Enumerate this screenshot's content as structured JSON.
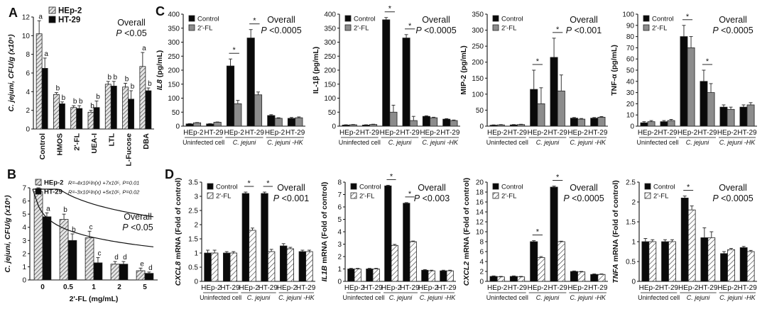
{
  "panel_letters": [
    "A",
    "B",
    "C",
    "D"
  ],
  "colors": {
    "black": "#0a0a0a",
    "gray": "#8c8c8c",
    "white": "#ffffff",
    "stroke": "#222222"
  },
  "chart_data": [
    {
      "id": "A",
      "type": "bar",
      "ylabel": "C. jejuni, CFU/g (x10⁵)",
      "ylim": [
        0,
        12
      ],
      "yticks": [
        0,
        2,
        4,
        6,
        8,
        10,
        12
      ],
      "categories": [
        "Control",
        "HMOS",
        "2'-FL",
        "UEA-I",
        "LTL",
        "L-Fucose",
        "DBA"
      ],
      "legend": [
        "HEp-2",
        "HT-29"
      ],
      "legend_position": "top-center",
      "overall": "Overall",
      "pvalue": "P <0.05",
      "series": [
        {
          "name": "HEp-2",
          "fill": "hatch",
          "values": [
            10.2,
            3.7,
            2.3,
            1.8,
            4.8,
            4.5,
            6.7
          ],
          "errors": [
            1.4,
            0.2,
            0.2,
            0.2,
            0.3,
            0.4,
            1.5
          ]
        },
        {
          "name": "HT-29",
          "fill": "black",
          "values": [
            6.5,
            2.7,
            2.2,
            2.3,
            4.6,
            3.2,
            4.1
          ],
          "errors": [
            1.1,
            0.2,
            0.3,
            0.7,
            0.5,
            0.9,
            0.3
          ]
        }
      ],
      "letters": [
        [
          "a",
          "a"
        ],
        [
          "b",
          "b"
        ],
        [
          "b",
          "b"
        ],
        [
          "b",
          "b"
        ],
        [
          "b",
          "b"
        ],
        [
          "b",
          "b"
        ],
        [
          "a",
          "b"
        ]
      ]
    },
    {
      "id": "B",
      "type": "bar",
      "ylabel": "C. jejuni, CFU/g (x10⁵)",
      "xlabel": "2'-FL (mg/mL)",
      "ylim": [
        0,
        7
      ],
      "yticks": [
        0,
        1,
        2,
        3,
        4,
        5,
        6,
        7
      ],
      "categories": [
        "0",
        "0.5",
        "1",
        "2",
        "5"
      ],
      "legend": [
        "HEp-2",
        "HT-29"
      ],
      "legend_position": "top-right",
      "equations": [
        "R=-4x10⁵ln(x) +7x10⁵, P=0.01",
        "R=-3x10⁵ln(x) +5x10⁵, P=0.02"
      ],
      "overall": "Overall",
      "pvalue": "P <0.05",
      "series": [
        {
          "name": "HEp-2",
          "fill": "hatch",
          "values": [
            6.7,
            4.6,
            3.2,
            1.2,
            0.7
          ],
          "errors": [
            0.3,
            0.4,
            0.5,
            0.2,
            0.2
          ]
        },
        {
          "name": "HT-29",
          "fill": "black",
          "values": [
            4.8,
            3.0,
            1.3,
            1.2,
            0.5
          ],
          "errors": [
            0.3,
            0.5,
            0.4,
            0.2,
            0.1
          ]
        }
      ],
      "letters": [
        [
          "a",
          "a"
        ],
        [
          "b",
          "b"
        ],
        [
          "c",
          "c"
        ],
        [
          "d",
          "d"
        ],
        [
          "e",
          "d"
        ]
      ]
    },
    {
      "id": "C1",
      "type": "bar",
      "ylabel": "IL8 (pg/mL)",
      "ylabel_italic_part": "IL8",
      "ylim": [
        0,
        400
      ],
      "yticks": [
        0,
        50,
        100,
        150,
        200,
        250,
        300,
        350,
        400
      ],
      "categories": [
        "HEp-2",
        "HT-29",
        "HEp-2",
        "HT-29",
        "HEp-2",
        "HT-29"
      ],
      "groups": [
        "Uninfected cell",
        "C. jejuni",
        "C. jejuni -HK"
      ],
      "legend": [
        "Control",
        "2'-FL"
      ],
      "overall": "Overall",
      "pvalue": "P <0.0005",
      "series": [
        {
          "name": "Control",
          "fill": "black",
          "values": [
            8,
            8,
            215,
            315,
            38,
            28
          ],
          "errors": [
            1,
            1,
            25,
            30,
            3,
            3
          ]
        },
        {
          "name": "2'-FL",
          "fill": "gray",
          "values": [
            12,
            14,
            80,
            112,
            28,
            30
          ],
          "errors": [
            1,
            1,
            12,
            10,
            2,
            3
          ]
        }
      ],
      "sig": [
        2,
        3
      ]
    },
    {
      "id": "C2",
      "type": "bar",
      "ylabel": "IL-1β (pg/mL)",
      "ylim": [
        0,
        400
      ],
      "yticks": [
        0,
        50,
        100,
        150,
        200,
        250,
        300,
        350,
        400
      ],
      "categories": [
        "HEp-2",
        "HT-29",
        "HEp-2",
        "HT-29",
        "HEp-2",
        "HT-29"
      ],
      "groups": [
        "Uninfected cell",
        "C. jejuni",
        "C. jejuni -HK"
      ],
      "legend": [
        "Control",
        "2'-FL"
      ],
      "overall": "Overall",
      "pvalue": "P <0.0005",
      "series": [
        {
          "name": "Control",
          "fill": "black",
          "values": [
            4,
            4,
            380,
            315,
            35,
            25
          ],
          "errors": [
            1,
            1,
            8,
            12,
            2,
            2
          ]
        },
        {
          "name": "2'-FL",
          "fill": "gray",
          "values": [
            5,
            6,
            50,
            20,
            30,
            20
          ],
          "errors": [
            1,
            1,
            25,
            15,
            2,
            2
          ]
        }
      ],
      "sig": [
        2,
        3
      ]
    },
    {
      "id": "C3",
      "type": "bar",
      "ylabel": "MIP-2 (pg/mL)",
      "ylim": [
        0,
        350
      ],
      "yticks": [
        0,
        50,
        100,
        150,
        200,
        250,
        300,
        350
      ],
      "categories": [
        "HEp-2",
        "HT-29",
        "HEp-2",
        "HT-29",
        "HEp-2",
        "HT-29"
      ],
      "groups": [
        "Uninfected cell",
        "C. jejuni",
        "C. jejuni -HK"
      ],
      "legend": [
        "Control",
        "2'-FL"
      ],
      "overall": "Overall",
      "pvalue": "P <0.001",
      "series": [
        {
          "name": "Control",
          "fill": "black",
          "values": [
            3,
            4,
            115,
            215,
            25,
            25
          ],
          "errors": [
            1,
            1,
            60,
            60,
            2,
            2
          ]
        },
        {
          "name": "2'-FL",
          "fill": "gray",
          "values": [
            4,
            5,
            70,
            110,
            22,
            28
          ],
          "errors": [
            1,
            1,
            50,
            50,
            2,
            2
          ]
        }
      ],
      "sig": [
        2,
        3
      ]
    },
    {
      "id": "C4",
      "type": "bar",
      "ylabel": "TNF-α (pg/mL)",
      "ylim": [
        0,
        100
      ],
      "yticks": [
        0,
        10,
        20,
        30,
        40,
        50,
        60,
        70,
        80,
        90,
        100
      ],
      "categories": [
        "HEp-2",
        "HT-29",
        "HEp-2",
        "HT-29",
        "HEp-2",
        "HT-29"
      ],
      "groups": [
        "Uninfected cell",
        "C. jejuni",
        "C. jejuni -HK"
      ],
      "legend": [
        "Control",
        "2'-FL"
      ],
      "overall": "Overall",
      "pvalue": "P <0.0005",
      "series": [
        {
          "name": "Control",
          "fill": "black",
          "values": [
            3,
            4,
            80,
            40,
            17,
            17
          ],
          "errors": [
            1,
            1,
            10,
            10,
            2,
            2
          ]
        },
        {
          "name": "2'-FL",
          "fill": "gray",
          "values": [
            4,
            5,
            70,
            30,
            15,
            19
          ],
          "errors": [
            1,
            1,
            10,
            8,
            2,
            2
          ]
        }
      ],
      "sig": [
        2,
        3
      ]
    },
    {
      "id": "D1",
      "type": "bar",
      "ylabel": "CXCL8 mRNA (Fold of control)",
      "ylabel_italic_part": "CXCL8",
      "ylim": [
        0,
        3.5
      ],
      "yticks": [
        0,
        0.5,
        1,
        1.5,
        2,
        2.5,
        3,
        3.5
      ],
      "categories": [
        "HEp-2",
        "HT-29",
        "HEp-2",
        "HT-29",
        "HEp-2",
        "HT-29"
      ],
      "groups": [
        "Uninfected cell",
        "C. jejuni",
        "C. jejuni -HK"
      ],
      "legend": [
        "Control",
        "2'-FL"
      ],
      "overall": "Overall",
      "pvalue": "P <0.001",
      "series": [
        {
          "name": "Control",
          "fill": "black",
          "values": [
            1.0,
            1.0,
            3.1,
            3.1,
            1.25,
            1.05
          ],
          "errors": [
            0.1,
            0.05,
            0.05,
            0.05,
            0.08,
            0.05
          ]
        },
        {
          "name": "2'-FL",
          "fill": "hatch",
          "values": [
            1.0,
            1.0,
            1.8,
            1.05,
            1.15,
            1.05
          ],
          "errors": [
            0.1,
            0.05,
            0.08,
            0.08,
            0.05,
            0.05
          ]
        }
      ],
      "sig": [
        2,
        3
      ]
    },
    {
      "id": "D2",
      "type": "bar",
      "ylabel": "IL1B mRNA (Fold of control)",
      "ylabel_italic_part": "IL1B",
      "ylim": [
        0,
        8
      ],
      "yticks": [
        0,
        1,
        2,
        3,
        4,
        5,
        6,
        7,
        8
      ],
      "categories": [
        "HEp-2",
        "HT-29",
        "HEp-2",
        "HT-29",
        "HEp-2",
        "HT-29"
      ],
      "groups": [
        "Uninfected cell",
        "C. jejuni",
        "C. jejuni -HK"
      ],
      "legend": [
        "Control",
        "2'-FL"
      ],
      "overall": "Overall",
      "pvalue": "P <0.003",
      "series": [
        {
          "name": "Control",
          "fill": "black",
          "values": [
            1.0,
            1.0,
            7.7,
            6.3,
            0.9,
            0.85
          ],
          "errors": [
            0.05,
            0.05,
            0.05,
            0.05,
            0.05,
            0.05
          ]
        },
        {
          "name": "2'-FL",
          "fill": "hatch",
          "values": [
            1.0,
            1.0,
            2.9,
            3.2,
            0.85,
            0.85
          ],
          "errors": [
            0.05,
            0.05,
            0.08,
            0.05,
            0.05,
            0.05
          ]
        }
      ],
      "sig": [
        2,
        3
      ]
    },
    {
      "id": "D3",
      "type": "bar",
      "ylabel": "CXCL2 mRNA (Fold of control)",
      "ylabel_italic_part": "CXCL2",
      "ylim": [
        0,
        20
      ],
      "yticks": [
        0,
        2,
        4,
        6,
        8,
        10,
        12,
        14,
        16,
        18,
        20
      ],
      "categories": [
        "HEp-2",
        "HT-29",
        "HEp-2",
        "HT-29",
        "HEp-2",
        "HT-29"
      ],
      "groups": [
        "Uninfected cell",
        "C. jejuni",
        "C. jejuni -HK"
      ],
      "legend": [
        "Control",
        "2'-FL"
      ],
      "overall": "Overall",
      "pvalue": "P <0.0005",
      "series": [
        {
          "name": "Control",
          "fill": "black",
          "values": [
            1.0,
            1.0,
            8.0,
            19.0,
            2.0,
            1.4
          ],
          "errors": [
            0.1,
            0.1,
            0.2,
            0.2,
            0.1,
            0.1
          ]
        },
        {
          "name": "2'-FL",
          "fill": "hatch",
          "values": [
            0.9,
            0.9,
            4.8,
            8.0,
            1.9,
            1.4
          ],
          "errors": [
            0.1,
            0.1,
            0.2,
            0.1,
            0.1,
            0.1
          ]
        }
      ],
      "sig": [
        2,
        3
      ]
    },
    {
      "id": "D4",
      "type": "bar",
      "ylabel": "TNFA mRNA (Fold of control)",
      "ylabel_italic_part": "TNFA",
      "ylim": [
        0,
        2.5
      ],
      "yticks": [
        0,
        0.5,
        1,
        1.5,
        2,
        2.5
      ],
      "categories": [
        "HEp-2",
        "HT-29",
        "HEp-2",
        "HT-29",
        "HEp-2",
        "HT-29"
      ],
      "groups": [
        "Uninfected cell",
        "C. jejuni",
        "C. jejuni -HK"
      ],
      "legend": [
        "Control",
        "2'-FL"
      ],
      "overall": "Overall",
      "pvalue": "P <0.0005",
      "series": [
        {
          "name": "Control",
          "fill": "black",
          "values": [
            1.0,
            1.0,
            2.1,
            1.1,
            0.7,
            0.85
          ],
          "errors": [
            0.08,
            0.05,
            0.05,
            0.25,
            0.05,
            0.03
          ]
        },
        {
          "name": "2'-FL",
          "fill": "hatch",
          "values": [
            1.0,
            1.0,
            1.8,
            1.1,
            0.8,
            0.75
          ],
          "errors": [
            0.05,
            0.05,
            0.1,
            0.15,
            0.03,
            0.03
          ]
        }
      ],
      "sig": [
        2
      ]
    }
  ]
}
